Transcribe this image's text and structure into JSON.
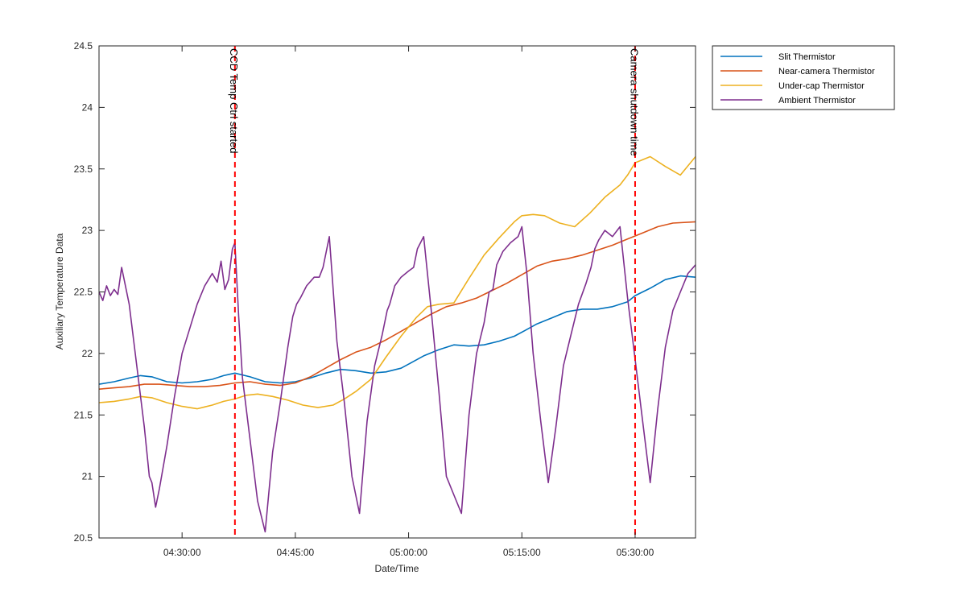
{
  "chart_data": {
    "type": "line",
    "title": "",
    "xlabel": "Date/Time",
    "ylabel": "Auxiliary Temperature Data",
    "x_axis_type": "time",
    "xlim": [
      "04:19:00",
      "05:38:00"
    ],
    "ylim": [
      20.5,
      24.5
    ],
    "x_ticks": [
      "04:30:00",
      "04:45:00",
      "05:00:00",
      "05:15:00",
      "05:30:00"
    ],
    "y_ticks": [
      20.5,
      21,
      21.5,
      22,
      22.5,
      23,
      23.5,
      24,
      24.5
    ],
    "y_tick_labels": [
      "20.5",
      "21",
      "21.5",
      "22",
      "22.5",
      "23",
      "23.5",
      "24",
      "24.5"
    ],
    "grid": false,
    "legend_position": "outside-top-right",
    "series": [
      {
        "name": "Slit Thermistor",
        "color": "#0072BD",
        "x": [
          "04:19:00",
          "04:21:00",
          "04:23:00",
          "04:24:30",
          "04:26:00",
          "04:28:00",
          "04:30:00",
          "04:32:00",
          "04:34:00",
          "04:35:30",
          "04:37:00",
          "04:39:00",
          "04:41:00",
          "04:43:00",
          "04:45:00",
          "04:47:00",
          "04:49:00",
          "04:51:00",
          "04:53:00",
          "04:55:00",
          "04:57:00",
          "04:59:00",
          "05:00:30",
          "05:02:00",
          "05:04:00",
          "05:06:00",
          "05:08:00",
          "05:10:00",
          "05:12:00",
          "05:14:00",
          "05:15:30",
          "05:17:00",
          "05:19:00",
          "05:21:00",
          "05:23:00",
          "05:25:00",
          "05:27:00",
          "05:29:00",
          "05:30:00",
          "05:32:00",
          "05:34:00",
          "05:36:00",
          "05:38:00"
        ],
        "y": [
          21.75,
          21.77,
          21.8,
          21.82,
          21.81,
          21.77,
          21.76,
          21.77,
          21.79,
          21.82,
          21.84,
          21.81,
          21.77,
          21.76,
          21.77,
          21.8,
          21.84,
          21.87,
          21.86,
          21.84,
          21.85,
          21.88,
          21.93,
          21.98,
          22.03,
          22.07,
          22.06,
          22.07,
          22.1,
          22.14,
          22.19,
          22.24,
          22.29,
          22.34,
          22.36,
          22.36,
          22.38,
          22.42,
          22.47,
          22.53,
          22.6,
          22.63,
          22.62
        ]
      },
      {
        "name": "Near-camera Thermistor",
        "color": "#D95319",
        "x": [
          "04:19:00",
          "04:21:00",
          "04:23:00",
          "04:25:00",
          "04:27:00",
          "04:29:00",
          "04:31:00",
          "04:33:00",
          "04:35:00",
          "04:37:00",
          "04:39:00",
          "04:41:00",
          "04:43:00",
          "04:45:00",
          "04:47:00",
          "04:49:00",
          "04:51:00",
          "04:53:00",
          "04:55:00",
          "04:57:00",
          "04:59:00",
          "05:01:00",
          "05:03:00",
          "05:05:00",
          "05:07:00",
          "05:09:00",
          "05:11:00",
          "05:13:00",
          "05:15:00",
          "05:17:00",
          "05:19:00",
          "05:21:00",
          "05:23:00",
          "05:25:00",
          "05:27:00",
          "05:29:00",
          "05:31:00",
          "05:33:00",
          "05:35:00",
          "05:38:00"
        ],
        "y": [
          21.71,
          21.72,
          21.73,
          21.75,
          21.75,
          21.74,
          21.73,
          21.73,
          21.74,
          21.76,
          21.77,
          21.75,
          21.74,
          21.76,
          21.81,
          21.88,
          21.95,
          22.01,
          22.05,
          22.11,
          22.18,
          22.25,
          22.32,
          22.38,
          22.41,
          22.45,
          22.51,
          22.57,
          22.64,
          22.71,
          22.75,
          22.77,
          22.8,
          22.84,
          22.88,
          22.93,
          22.98,
          23.03,
          23.06,
          23.07
        ]
      },
      {
        "name": "Under-cap Thermistor",
        "color": "#EDB120",
        "x": [
          "04:19:00",
          "04:21:00",
          "04:23:00",
          "04:24:30",
          "04:26:00",
          "04:28:00",
          "04:30:00",
          "04:32:00",
          "04:34:00",
          "04:35:30",
          "04:37:00",
          "04:38:30",
          "04:40:00",
          "04:42:00",
          "04:44:00",
          "04:46:00",
          "04:48:00",
          "04:50:00",
          "04:51:30",
          "04:53:00",
          "04:55:00",
          "04:57:00",
          "04:59:00",
          "05:01:00",
          "05:02:30",
          "05:04:00",
          "05:06:00",
          "05:08:00",
          "05:10:00",
          "05:12:00",
          "05:14:00",
          "05:15:00",
          "05:16:30",
          "05:18:00",
          "05:20:00",
          "05:22:00",
          "05:24:00",
          "05:26:00",
          "05:28:00",
          "05:29:00",
          "05:30:00",
          "05:32:00",
          "05:34:00",
          "05:36:00",
          "05:38:00"
        ],
        "y": [
          21.6,
          21.61,
          21.63,
          21.65,
          21.64,
          21.6,
          21.57,
          21.55,
          21.58,
          21.61,
          21.63,
          21.66,
          21.67,
          21.65,
          21.62,
          21.58,
          21.56,
          21.58,
          21.63,
          21.69,
          21.79,
          21.97,
          22.14,
          22.29,
          22.38,
          22.4,
          22.41,
          22.61,
          22.8,
          22.94,
          23.07,
          23.12,
          23.13,
          23.12,
          23.06,
          23.03,
          23.14,
          23.27,
          23.37,
          23.45,
          23.55,
          23.6,
          23.52,
          23.45,
          23.6
        ]
      },
      {
        "name": "Ambient Thermistor",
        "color": "#7E2F8E",
        "x": [
          "04:19:00",
          "04:19:30",
          "04:20:00",
          "04:20:30",
          "04:21:00",
          "04:21:30",
          "04:22:00",
          "04:23:00",
          "04:24:00",
          "04:25:00",
          "04:25:40",
          "04:26:00",
          "04:26:30",
          "04:27:00",
          "04:28:00",
          "04:29:00",
          "04:30:00",
          "04:31:00",
          "04:32:00",
          "04:33:00",
          "04:34:00",
          "04:34:40",
          "04:35:10",
          "04:35:40",
          "04:36:10",
          "04:36:40",
          "04:37:00",
          "04:37:30",
          "04:38:00",
          "04:39:00",
          "04:40:00",
          "04:41:00",
          "04:42:00",
          "04:43:00",
          "04:44:00",
          "04:44:40",
          "04:45:10",
          "04:45:40",
          "04:46:30",
          "04:47:30",
          "04:48:10",
          "04:48:40",
          "04:49:30",
          "04:50:30",
          "04:51:30",
          "04:52:30",
          "04:53:30",
          "04:54:30",
          "04:55:30",
          "04:56:30",
          "04:57:10",
          "04:57:30",
          "04:58:10",
          "04:59:00",
          "05:00:00",
          "05:00:40",
          "05:01:10",
          "05:02:00",
          "05:03:00",
          "05:04:00",
          "05:05:00",
          "05:06:00",
          "05:07:00",
          "05:08:00",
          "05:09:00",
          "05:10:00",
          "05:10:40",
          "05:11:10",
          "05:11:40",
          "05:12:30",
          "05:13:30",
          "05:14:30",
          "05:15:00",
          "05:15:40",
          "05:16:30",
          "05:17:30",
          "05:18:30",
          "05:19:30",
          "05:20:30",
          "05:21:30",
          "05:22:30",
          "05:23:30",
          "05:24:10",
          "05:24:40",
          "05:25:10",
          "05:26:00",
          "05:27:00",
          "05:28:00",
          "05:29:00",
          "05:30:00",
          "05:31:00",
          "05:32:00",
          "05:33:00",
          "05:34:00",
          "05:35:00",
          "05:36:00",
          "05:37:00",
          "05:38:00"
        ],
        "y": [
          22.5,
          22.43,
          22.55,
          22.47,
          22.52,
          22.48,
          22.7,
          22.4,
          21.9,
          21.4,
          21.0,
          20.95,
          20.75,
          20.9,
          21.25,
          21.65,
          22.0,
          22.2,
          22.4,
          22.55,
          22.65,
          22.58,
          22.75,
          22.52,
          22.6,
          22.85,
          22.9,
          22.3,
          21.8,
          21.3,
          20.8,
          20.55,
          21.2,
          21.6,
          22.05,
          22.3,
          22.4,
          22.45,
          22.55,
          22.62,
          22.62,
          22.7,
          22.95,
          22.1,
          21.6,
          21.0,
          20.7,
          21.45,
          21.9,
          22.15,
          22.35,
          22.4,
          22.55,
          22.62,
          22.67,
          22.7,
          22.85,
          22.95,
          22.35,
          21.7,
          21.0,
          20.85,
          20.7,
          21.5,
          22.0,
          22.25,
          22.5,
          22.52,
          22.72,
          22.83,
          22.9,
          22.95,
          23.03,
          22.65,
          22.0,
          21.45,
          20.95,
          21.4,
          21.9,
          22.15,
          22.4,
          22.57,
          22.7,
          22.85,
          22.92,
          23.0,
          22.95,
          23.03,
          22.45,
          21.95,
          21.45,
          20.95,
          21.55,
          22.05,
          22.35,
          22.5,
          22.65,
          22.72
        ]
      }
    ],
    "annotations": [
      {
        "text": "CCD Temp Ctrl started",
        "x": "04:37:00"
      },
      {
        "text": "Camera shutdown time",
        "x": "05:30:00"
      }
    ],
    "annotation_line_color": "#FF0000"
  }
}
